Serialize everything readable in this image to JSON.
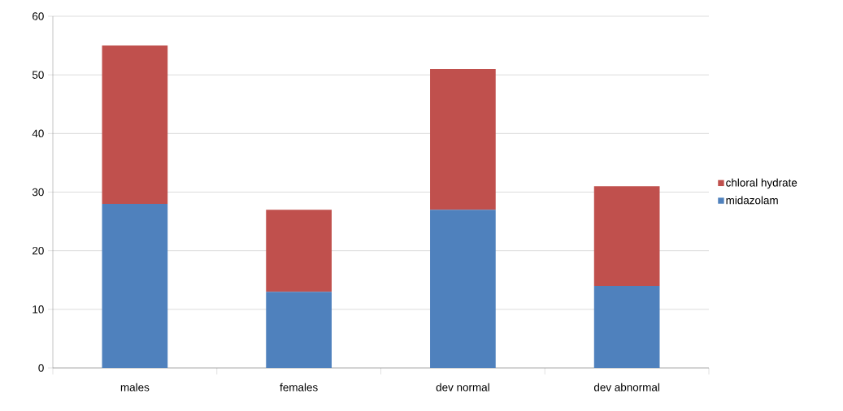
{
  "chart_data": {
    "type": "bar",
    "stacked": true,
    "categories": [
      "males",
      "females",
      "dev normal",
      "dev abnormal"
    ],
    "series": [
      {
        "name": "midazolam",
        "color": "#4f81bd",
        "values": [
          28,
          13,
          27,
          14
        ]
      },
      {
        "name": "chloral hydrate",
        "color": "#c0504d",
        "values": [
          27,
          14,
          24,
          17
        ]
      }
    ],
    "ylim": [
      0,
      60
    ],
    "yticks": [
      0,
      10,
      20,
      30,
      40,
      50,
      60
    ],
    "grid": "y",
    "legend": "right"
  }
}
